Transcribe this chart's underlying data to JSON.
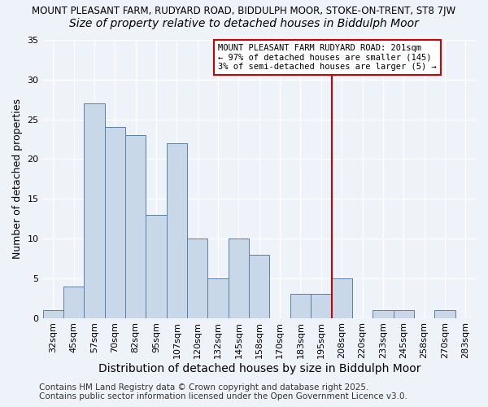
{
  "title_line1": "MOUNT PLEASANT FARM, RUDYARD ROAD, BIDDULPH MOOR, STOKE-ON-TRENT, ST8 7JW",
  "title_line2": "Size of property relative to detached houses in Biddulph Moor",
  "xlabel": "Distribution of detached houses by size in Biddulph Moor",
  "ylabel": "Number of detached properties",
  "categories": [
    "32sqm",
    "45sqm",
    "57sqm",
    "70sqm",
    "82sqm",
    "95sqm",
    "107sqm",
    "120sqm",
    "132sqm",
    "145sqm",
    "158sqm",
    "170sqm",
    "183sqm",
    "195sqm",
    "208sqm",
    "220sqm",
    "233sqm",
    "245sqm",
    "258sqm",
    "270sqm",
    "283sqm"
  ],
  "values": [
    1,
    4,
    27,
    24,
    23,
    13,
    22,
    10,
    5,
    10,
    8,
    0,
    3,
    3,
    5,
    0,
    1,
    1,
    0,
    1,
    0
  ],
  "bar_color": "#c8d8e8",
  "bar_edge_color": "#5a7fa8",
  "vline_index": 14,
  "vline_color": "#cc0000",
  "annotation_text": "MOUNT PLEASANT FARM RUDYARD ROAD: 201sqm\n← 97% of detached houses are smaller (145)\n3% of semi-detached houses are larger (5) →",
  "annotation_box_color": "#ffffff",
  "annotation_box_edge": "#cc0000",
  "ylim": [
    0,
    35
  ],
  "yticks": [
    0,
    5,
    10,
    15,
    20,
    25,
    30,
    35
  ],
  "footer_line1": "Contains HM Land Registry data © Crown copyright and database right 2025.",
  "footer_line2": "Contains public sector information licensed under the Open Government Licence v3.0.",
  "bg_color": "#eef3fa",
  "grid_color": "#ffffff",
  "title1_fontsize": 8.5,
  "title2_fontsize": 10,
  "xlabel_fontsize": 10,
  "ylabel_fontsize": 9,
  "tick_fontsize": 8,
  "footer_fontsize": 7.5
}
